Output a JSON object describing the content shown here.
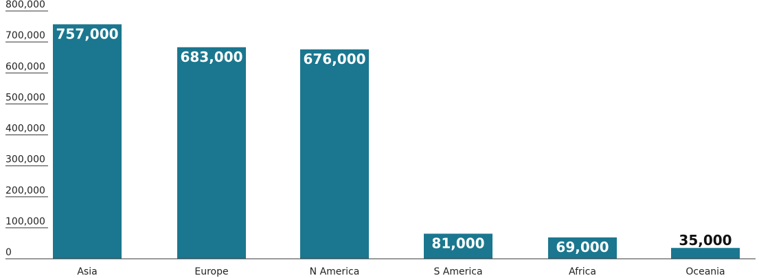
{
  "chart_data": {
    "type": "bar",
    "categories": [
      "Asia",
      "Europe",
      "N America",
      "S America",
      "Africa",
      "Oceania"
    ],
    "values": [
      757000,
      683000,
      676000,
      81000,
      69000,
      35000
    ],
    "data_labels": [
      "757,000",
      "683,000",
      "676,000",
      "81,000",
      "69,000",
      "35,000"
    ],
    "y_ticks": [
      0,
      100000,
      200000,
      300000,
      400000,
      500000,
      600000,
      700000,
      800000
    ],
    "y_tick_labels": [
      "0",
      "100,000",
      "200,000",
      "300,000",
      "400,000",
      "500,000",
      "600,000",
      "700,000",
      "800,000"
    ],
    "ylim": [
      0,
      800000
    ],
    "grid": false,
    "legend": "none"
  },
  "colors": {
    "bar": "#1a778f",
    "label_inside": "#ffffff",
    "label_outside": "#111111",
    "axis": "#333333"
  }
}
